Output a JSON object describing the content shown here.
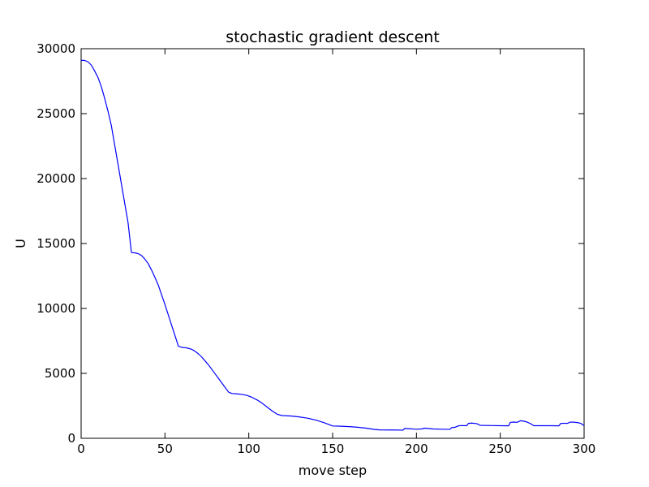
{
  "chart_data": {
    "type": "line",
    "title": "stochastic gradient descent",
    "xlabel": "move step",
    "ylabel": "U",
    "xlim": [
      0,
      300
    ],
    "ylim": [
      0,
      30000
    ],
    "xticks": [
      0,
      50,
      100,
      150,
      200,
      250,
      300
    ],
    "yticks": [
      0,
      5000,
      10000,
      15000,
      20000,
      25000,
      30000
    ],
    "xtick_labels": [
      "0",
      "50",
      "100",
      "150",
      "200",
      "250",
      "300"
    ],
    "ytick_labels": [
      "0",
      "5000",
      "10000",
      "15000",
      "20000",
      "25000",
      "30000"
    ],
    "grid": false,
    "series": [
      {
        "color": "#0000ff",
        "x": [
          0,
          2,
          4,
          6,
          8,
          10,
          12,
          14,
          16,
          18,
          20,
          22,
          24,
          26,
          28,
          30,
          32,
          34,
          36,
          38,
          40,
          42,
          44,
          46,
          48,
          50,
          52,
          54,
          56,
          58,
          60,
          62,
          64,
          66,
          68,
          70,
          72,
          74,
          76,
          78,
          80,
          82,
          84,
          86,
          88,
          90,
          93,
          96,
          99,
          102,
          105,
          108,
          111,
          114,
          117,
          120,
          125,
          130,
          135,
          140,
          145,
          150,
          155,
          160,
          165,
          170,
          175,
          178,
          185,
          192,
          193,
          200,
          203,
          205,
          210,
          215,
          220,
          221,
          223,
          225,
          227,
          230,
          231,
          233,
          236,
          238,
          240,
          245,
          250,
          255,
          256,
          258,
          260,
          262,
          264,
          266,
          268,
          270,
          275,
          280,
          285,
          286,
          288,
          290,
          292,
          294,
          296,
          298,
          300
        ],
        "y": [
          29100,
          29100,
          29000,
          28750,
          28300,
          27800,
          27100,
          26200,
          25200,
          24100,
          22600,
          21100,
          19600,
          18100,
          16600,
          14300,
          14280,
          14220,
          14080,
          13800,
          13450,
          12950,
          12400,
          11800,
          11050,
          10300,
          9500,
          8700,
          7900,
          7100,
          7000,
          6980,
          6930,
          6850,
          6700,
          6500,
          6250,
          5950,
          5650,
          5300,
          4950,
          4600,
          4250,
          3900,
          3550,
          3450,
          3420,
          3380,
          3300,
          3150,
          2950,
          2700,
          2400,
          2100,
          1850,
          1750,
          1720,
          1650,
          1550,
          1400,
          1200,
          950,
          930,
          900,
          850,
          780,
          680,
          650,
          640,
          630,
          760,
          700,
          720,
          780,
          720,
          700,
          690,
          820,
          850,
          960,
          980,
          970,
          1150,
          1170,
          1130,
          1000,
          990,
          980,
          970,
          960,
          1230,
          1250,
          1230,
          1350,
          1320,
          1250,
          1130,
          970,
          970,
          970,
          960,
          1140,
          1160,
          1150,
          1250,
          1240,
          1210,
          1150,
          980
        ]
      }
    ]
  }
}
